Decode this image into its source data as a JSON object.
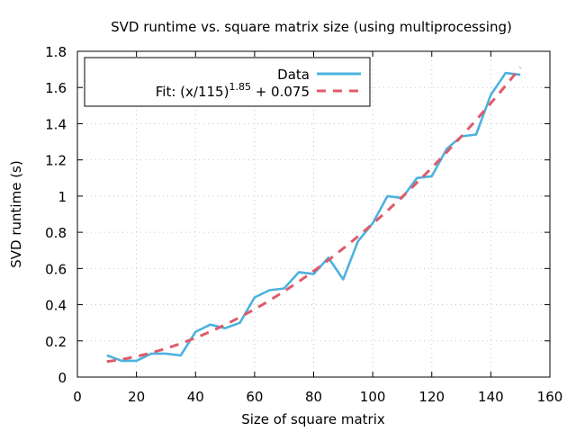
{
  "chart_data": {
    "type": "line",
    "title": "SVD runtime vs. square matrix size (using multiprocessing)",
    "xlabel": "Size of square matrix",
    "ylabel": "SVD runtime (s)",
    "xlim": [
      0,
      160
    ],
    "ylim": [
      0,
      1.8
    ],
    "xticks": [
      0,
      20,
      40,
      60,
      80,
      100,
      120,
      140,
      160
    ],
    "xtick_labels": [
      "0",
      "20",
      "40",
      "60",
      "80",
      "100",
      "120",
      "140",
      "160"
    ],
    "yticks": [
      0,
      0.2,
      0.4,
      0.6,
      0.8,
      1.0,
      1.2,
      1.4,
      1.6,
      1.8
    ],
    "ytick_labels": [
      "0",
      "0.2",
      "0.4",
      "0.6",
      "0.8",
      "1",
      "1.2",
      "1.4",
      "1.6",
      "1.8"
    ],
    "grid": true,
    "legend_position": "top-left",
    "series": [
      {
        "name": "Data",
        "color": "#4cb2df",
        "style": "solid",
        "x": [
          10,
          15,
          20,
          25,
          30,
          35,
          40,
          45,
          50,
          55,
          60,
          65,
          70,
          75,
          80,
          85,
          90,
          95,
          100,
          105,
          110,
          115,
          120,
          125,
          130,
          135,
          140,
          145,
          150
        ],
        "y": [
          0.12,
          0.09,
          0.09,
          0.13,
          0.13,
          0.12,
          0.25,
          0.29,
          0.27,
          0.3,
          0.44,
          0.48,
          0.49,
          0.58,
          0.57,
          0.66,
          0.54,
          0.75,
          0.85,
          1.0,
          0.99,
          1.1,
          1.11,
          1.26,
          1.33,
          1.34,
          1.56,
          1.68,
          1.67
        ]
      }
    ],
    "fit": {
      "legend_prefix": "Fit: (x/115)",
      "legend_exponent": "1.85",
      "legend_suffix": " + 0.075",
      "color": "#e05a6a",
      "style": "dashed",
      "scale": 115,
      "exponent": 1.85,
      "offset": 0.075,
      "x_start": 10,
      "x_end": 150
    }
  }
}
